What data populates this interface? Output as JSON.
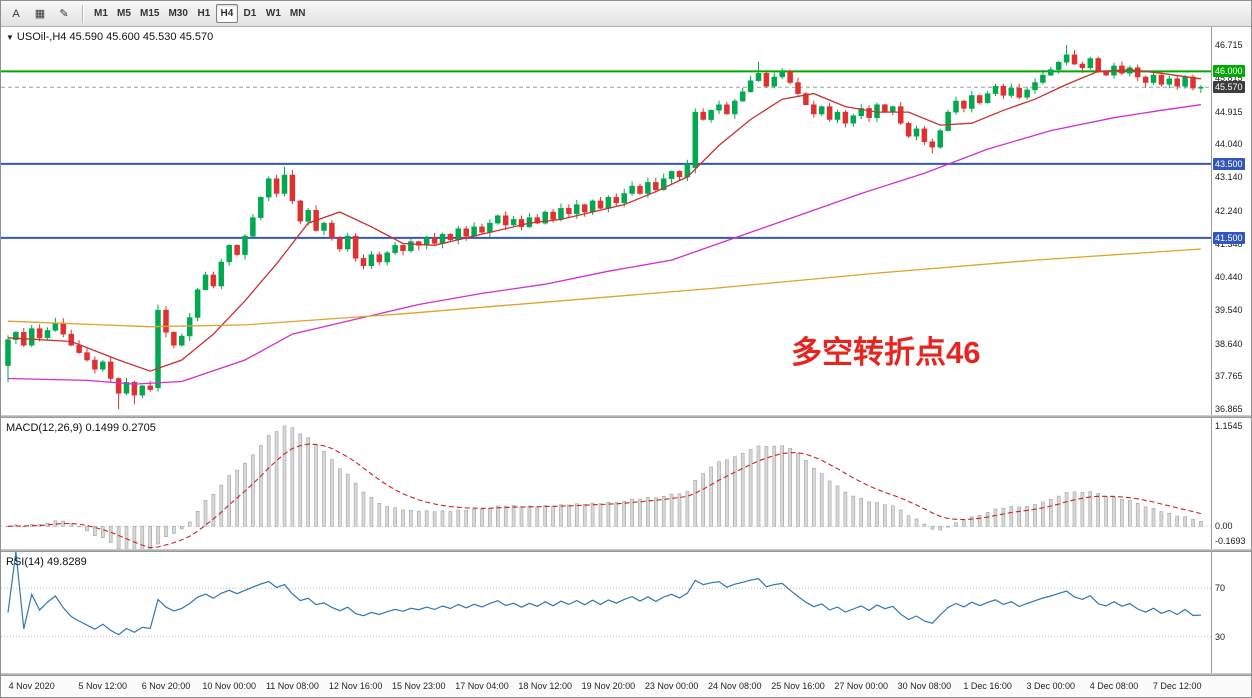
{
  "toolbar": {
    "tools": [
      {
        "id": "cursor-tool",
        "glyph": "A"
      },
      {
        "id": "template-tool",
        "glyph": "▦"
      },
      {
        "id": "objects-tool",
        "glyph": "✎"
      }
    ],
    "timeframes": [
      "M1",
      "M5",
      "M15",
      "M30",
      "H1",
      "H4",
      "D1",
      "W1",
      "MN"
    ],
    "active_timeframe": "H4"
  },
  "price_panel": {
    "dropdown_glyph": "▼",
    "title": "USOil-,H4 45.590 45.600 45.530 45.570"
  },
  "annotation": {
    "text": "多空转折点46",
    "color": "#E82420"
  },
  "levels": [
    {
      "price": 46.0,
      "label": "46.000",
      "color": "#00AA00"
    },
    {
      "price": 43.5,
      "label": "43.500",
      "color": "#3355C0"
    },
    {
      "price": 41.5,
      "label": "41.500",
      "color": "#3355C0"
    }
  ],
  "current_price": {
    "price": 45.57,
    "label": "45.570",
    "tag_color": "#3C3C3C",
    "line_color": "#A0A0A0"
  },
  "price_axis": {
    "ticks": [
      46.715,
      45.815,
      44.915,
      44.04,
      43.14,
      42.24,
      41.34,
      40.44,
      39.54,
      38.64,
      37.765,
      36.865
    ]
  },
  "macd_panel": {
    "title": "MACD(12,26,9) 0.1499 0.2705",
    "axis": {
      "top": "1.1545",
      "zero": "0.00",
      "bottom": "-0.1693"
    },
    "histogram_color": "#D8D8D8",
    "histogram_border": "#A2A2A2",
    "signal_color": "#CC2222"
  },
  "rsi_panel": {
    "title": "RSI(14) 49.8289",
    "levels": [
      70,
      30
    ],
    "line_color": "#2F76B4"
  },
  "time_axis": {
    "labels": [
      {
        "t": "4 Nov 2020",
        "i": 3
      },
      {
        "t": "5 Nov 12:00",
        "i": 12
      },
      {
        "t": "6 Nov 20:00",
        "i": 20
      },
      {
        "t": "10 Nov 00:00",
        "i": 28
      },
      {
        "t": "11 Nov 08:00",
        "i": 36
      },
      {
        "t": "12 Nov 16:00",
        "i": 44
      },
      {
        "t": "15 Nov 23:00",
        "i": 52
      },
      {
        "t": "17 Nov 04:00",
        "i": 60
      },
      {
        "t": "18 Nov 12:00",
        "i": 68
      },
      {
        "t": "19 Nov 20:00",
        "i": 76
      },
      {
        "t": "23 Nov 00:00",
        "i": 84
      },
      {
        "t": "24 Nov 08:00",
        "i": 92
      },
      {
        "t": "25 Nov 16:00",
        "i": 100
      },
      {
        "t": "27 Nov 00:00",
        "i": 108
      },
      {
        "t": "30 Nov 08:00",
        "i": 116
      },
      {
        "t": "1 Dec 16:00",
        "i": 124
      },
      {
        "t": "3 Dec 00:00",
        "i": 132
      },
      {
        "t": "4 Dec 08:00",
        "i": 140
      },
      {
        "t": "7 Dec 12:00",
        "i": 148
      }
    ]
  },
  "chart_data": {
    "type": "candlestick",
    "symbol": "USOil-",
    "period": "H4",
    "last_quote": {
      "open": 45.59,
      "high": 45.6,
      "low": 45.53,
      "close": 45.57
    },
    "price_range": [
      36.865,
      46.715
    ],
    "style": {
      "up_color": "#00A94F",
      "down_color": "#E03131",
      "background": "#FFFFFF"
    },
    "candles": {
      "first_open": 38.05,
      "closes": [
        38.75,
        38.95,
        38.6,
        39.05,
        38.8,
        39.0,
        39.2,
        38.9,
        38.6,
        38.4,
        38.2,
        37.95,
        38.15,
        37.7,
        37.3,
        37.6,
        37.25,
        37.5,
        37.4,
        39.55,
        38.95,
        38.6,
        38.85,
        39.35,
        40.1,
        40.5,
        40.2,
        40.85,
        41.3,
        41.05,
        41.55,
        42.05,
        42.6,
        43.1,
        42.7,
        43.2,
        42.5,
        41.95,
        42.25,
        41.7,
        41.9,
        41.5,
        41.2,
        41.55,
        40.95,
        40.75,
        41.05,
        40.85,
        41.1,
        41.3,
        41.15,
        41.4,
        41.3,
        41.5,
        41.35,
        41.6,
        41.45,
        41.75,
        41.55,
        41.8,
        41.65,
        41.9,
        42.1,
        41.85,
        42.0,
        41.8,
        42.05,
        41.9,
        42.2,
        42.0,
        42.3,
        42.15,
        42.4,
        42.2,
        42.5,
        42.3,
        42.6,
        42.45,
        42.7,
        42.9,
        42.7,
        43.0,
        42.8,
        43.1,
        43.3,
        43.15,
        43.5,
        44.9,
        44.7,
        44.95,
        45.1,
        44.85,
        45.2,
        45.45,
        45.75,
        45.95,
        45.6,
        45.85,
        46.0,
        45.7,
        45.4,
        45.1,
        44.85,
        45.05,
        44.7,
        44.9,
        44.6,
        44.8,
        45.0,
        44.75,
        45.1,
        44.9,
        45.05,
        44.6,
        44.25,
        44.45,
        44.1,
        43.95,
        44.4,
        44.9,
        45.2,
        45.0,
        45.35,
        45.15,
        45.4,
        45.6,
        45.35,
        45.55,
        45.3,
        45.5,
        45.7,
        45.9,
        46.05,
        46.25,
        46.45,
        46.2,
        46.1,
        46.35,
        46.0,
        45.9,
        46.15,
        45.95,
        46.1,
        45.85,
        45.7,
        45.9,
        45.65,
        45.8,
        45.6,
        45.85,
        45.55,
        45.57
      ],
      "overrides": {
        "0": {
          "o": 38.05,
          "l": 37.6
        },
        "14": {
          "l": 36.87
        },
        "16": {
          "l": 37.0
        },
        "19": {
          "o": 37.45,
          "h": 39.7,
          "l": 37.35
        },
        "35": {
          "h": 43.42
        },
        "87": {
          "o": 43.4,
          "h": 45.0,
          "l": 43.25
        },
        "95": {
          "h": 46.26
        },
        "117": {
          "l": 43.78
        },
        "134": {
          "h": 46.715
        },
        "151": {
          "o": 45.55
        }
      }
    },
    "overlays": [
      {
        "name": "ma-fast",
        "color": "#C83232",
        "points": [
          [
            0,
            38.8
          ],
          [
            8,
            38.7
          ],
          [
            14,
            38.2
          ],
          [
            18,
            37.9
          ],
          [
            22,
            38.2
          ],
          [
            26,
            38.9
          ],
          [
            30,
            39.8
          ],
          [
            34,
            40.8
          ],
          [
            38,
            41.9
          ],
          [
            42,
            42.2
          ],
          [
            46,
            41.8
          ],
          [
            50,
            41.35
          ],
          [
            54,
            41.3
          ],
          [
            58,
            41.5
          ],
          [
            62,
            41.7
          ],
          [
            66,
            41.9
          ],
          [
            70,
            42.0
          ],
          [
            74,
            42.2
          ],
          [
            78,
            42.4
          ],
          [
            82,
            42.75
          ],
          [
            86,
            43.15
          ],
          [
            90,
            44.0
          ],
          [
            94,
            44.7
          ],
          [
            98,
            45.25
          ],
          [
            102,
            45.4
          ],
          [
            106,
            45.05
          ],
          [
            110,
            44.9
          ],
          [
            114,
            44.9
          ],
          [
            118,
            44.55
          ],
          [
            122,
            44.6
          ],
          [
            126,
            44.95
          ],
          [
            130,
            45.25
          ],
          [
            134,
            45.65
          ],
          [
            138,
            46.0
          ],
          [
            142,
            46.05
          ],
          [
            146,
            45.95
          ],
          [
            151,
            45.8
          ]
        ]
      },
      {
        "name": "ma-mid",
        "color": "#D02FD0",
        "points": [
          [
            0,
            37.7
          ],
          [
            10,
            37.65
          ],
          [
            16,
            37.55
          ],
          [
            22,
            37.62
          ],
          [
            30,
            38.2
          ],
          [
            36,
            38.9
          ],
          [
            44,
            39.3
          ],
          [
            52,
            39.7
          ],
          [
            60,
            40.0
          ],
          [
            68,
            40.25
          ],
          [
            76,
            40.6
          ],
          [
            84,
            40.9
          ],
          [
            92,
            41.5
          ],
          [
            100,
            42.1
          ],
          [
            108,
            42.7
          ],
          [
            116,
            43.25
          ],
          [
            124,
            43.9
          ],
          [
            132,
            44.4
          ],
          [
            140,
            44.75
          ],
          [
            146,
            44.95
          ],
          [
            151,
            45.1
          ]
        ]
      },
      {
        "name": "ma-slow",
        "color": "#DFA22E",
        "points": [
          [
            0,
            39.25
          ],
          [
            18,
            39.1
          ],
          [
            30,
            39.15
          ],
          [
            50,
            39.45
          ],
          [
            70,
            39.8
          ],
          [
            90,
            40.15
          ],
          [
            110,
            40.55
          ],
          [
            130,
            40.9
          ],
          [
            151,
            41.2
          ]
        ]
      }
    ],
    "indicators": [
      {
        "name": "MACD",
        "params": [
          12,
          26,
          9
        ],
        "display_values": [
          0.1499,
          0.2705
        ],
        "range": [
          -0.1693,
          1.1545
        ]
      },
      {
        "name": "RSI",
        "params": [
          14
        ],
        "display_value": 49.8289,
        "levels": [
          70,
          30
        ]
      }
    ]
  }
}
